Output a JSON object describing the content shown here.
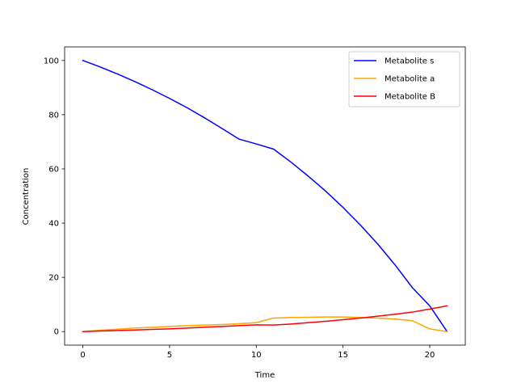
{
  "chart_data": {
    "type": "line",
    "title": "",
    "xlabel": "Time",
    "ylabel": "Concentration",
    "xlim": [
      -1.05,
      22.05
    ],
    "ylim": [
      -5,
      105
    ],
    "xticks": [
      0,
      5,
      10,
      15,
      20
    ],
    "yticks": [
      0,
      20,
      40,
      60,
      80,
      100
    ],
    "grid": false,
    "legend_position": "top-right",
    "x": [
      0,
      1,
      2,
      3,
      4,
      5,
      6,
      7,
      8,
      9,
      10,
      11,
      12,
      13,
      14,
      15,
      16,
      17,
      18,
      19,
      20,
      21
    ],
    "series": [
      {
        "name": "Metabolite s",
        "color": "#0000ff",
        "values": [
          100,
          97.6,
          95.0,
          92.2,
          89.2,
          86.0,
          82.6,
          78.9,
          75.0,
          71.0,
          69.2,
          67.3,
          62.5,
          57.3,
          51.8,
          45.8,
          39.3,
          32.3,
          24.6,
          16.2,
          9.5,
          0
        ]
      },
      {
        "name": "Metabolite a",
        "color": "#ffa500",
        "values": [
          0,
          0.5,
          0.9,
          1.3,
          1.6,
          1.9,
          2.2,
          2.4,
          2.6,
          2.9,
          3.3,
          5.0,
          5.2,
          5.3,
          5.4,
          5.4,
          5.2,
          5.0,
          4.6,
          4.0,
          1.0,
          0
        ]
      },
      {
        "name": "Metabolite B",
        "color": "#ff0000",
        "values": [
          0,
          0.2,
          0.4,
          0.6,
          0.8,
          1.0,
          1.3,
          1.6,
          1.9,
          2.2,
          2.5,
          2.4,
          2.8,
          3.3,
          3.8,
          4.4,
          5.0,
          5.7,
          6.4,
          7.2,
          8.3,
          9.5
        ]
      }
    ]
  }
}
